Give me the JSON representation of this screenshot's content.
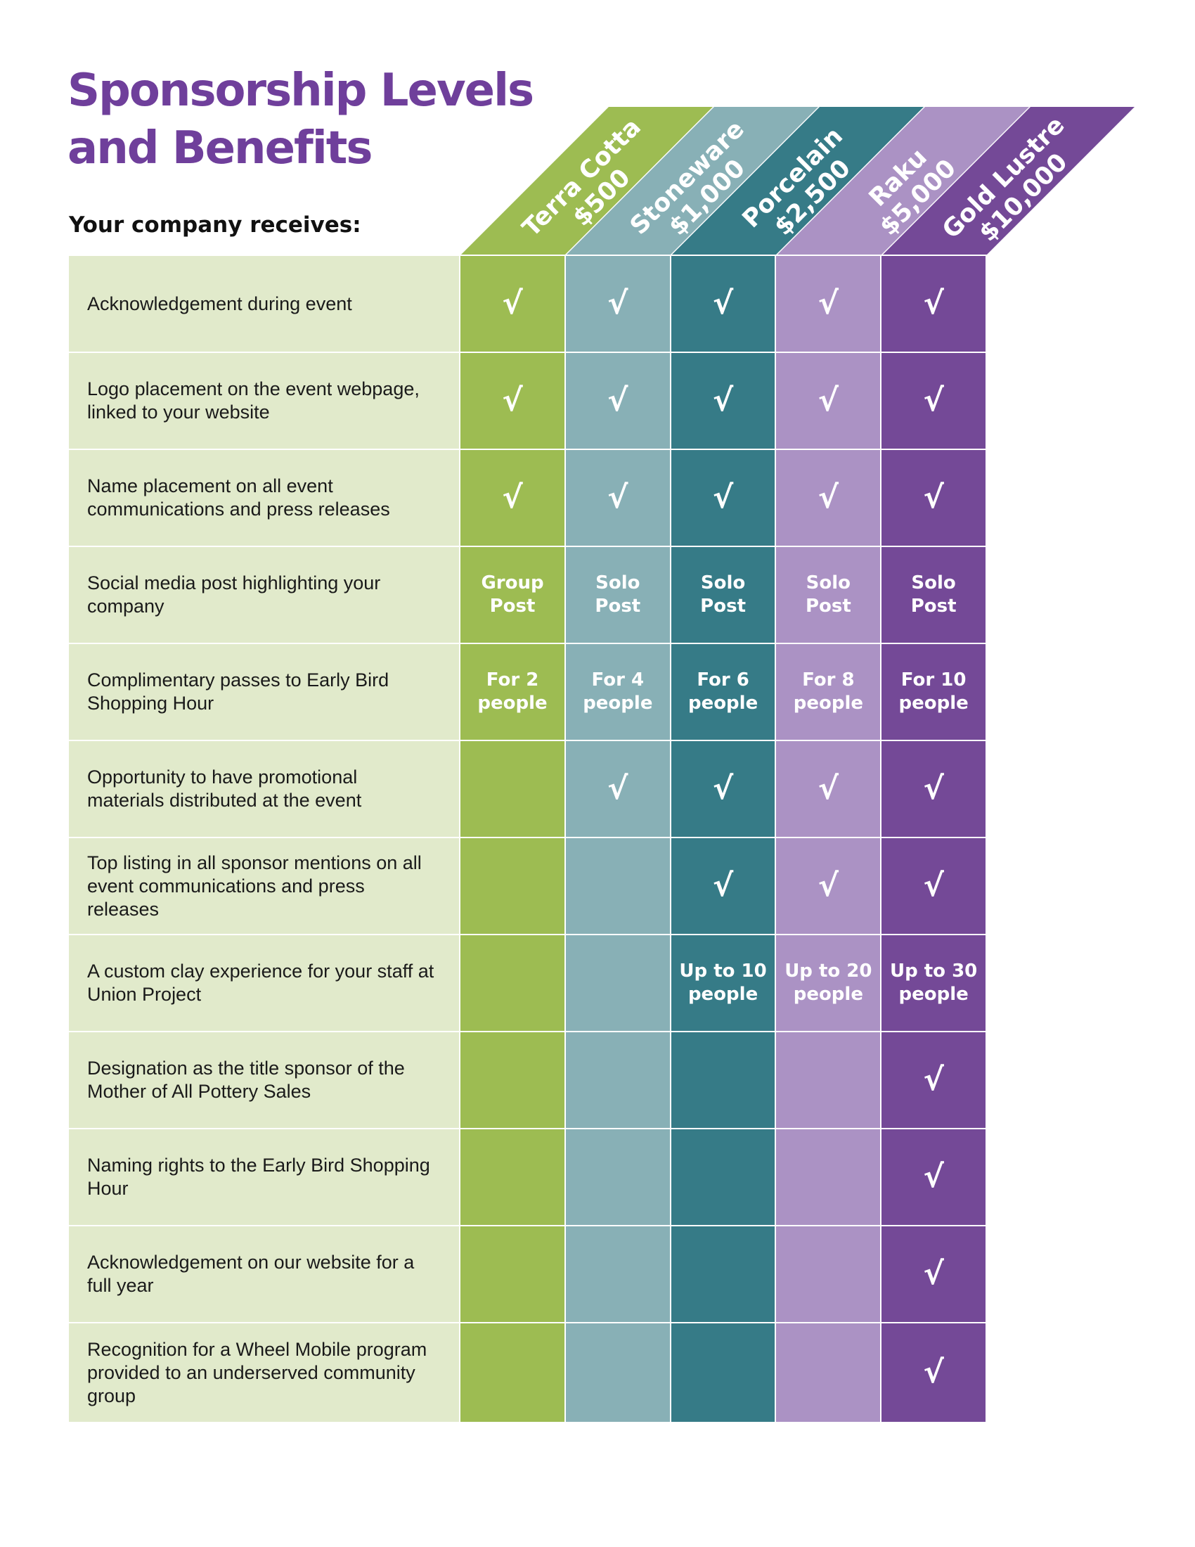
{
  "title_lines": [
    "Sponsorship Levels",
    "and Benefits"
  ],
  "subtitle": "Your company receives:",
  "colors": {
    "title": "#6f3f9b",
    "benefit_background": "#e1eacb",
    "tiers": [
      "#9dbc52",
      "#88b0b6",
      "#367b87",
      "#ab92c4",
      "#744997"
    ]
  },
  "check_mark": "√",
  "tiers": [
    {
      "name": "Terra Cotta",
      "price": "$500"
    },
    {
      "name": "Stoneware",
      "price": "$1,000"
    },
    {
      "name": "Porcelain",
      "price": "$2,500"
    },
    {
      "name": "Raku",
      "price": "$5,000"
    },
    {
      "name": "Gold Lustre",
      "price": "$10,000"
    }
  ],
  "benefits": [
    {
      "text": "Acknowledgement during event",
      "cells": [
        {
          "type": "check"
        },
        {
          "type": "check"
        },
        {
          "type": "check"
        },
        {
          "type": "check"
        },
        {
          "type": "check"
        }
      ]
    },
    {
      "text": "Logo placement on the event webpage, linked to your website",
      "cells": [
        {
          "type": "check"
        },
        {
          "type": "check"
        },
        {
          "type": "check"
        },
        {
          "type": "check"
        },
        {
          "type": "check"
        }
      ]
    },
    {
      "text": "Name placement on all event communications and press releases",
      "cells": [
        {
          "type": "check"
        },
        {
          "type": "check"
        },
        {
          "type": "check"
        },
        {
          "type": "check"
        },
        {
          "type": "check"
        }
      ]
    },
    {
      "text": "Social media post highlighting your company",
      "cells": [
        {
          "type": "text",
          "lines": [
            "Group",
            "Post"
          ]
        },
        {
          "type": "text",
          "lines": [
            "Solo",
            "Post"
          ]
        },
        {
          "type": "text",
          "lines": [
            "Solo",
            "Post"
          ]
        },
        {
          "type": "text",
          "lines": [
            "Solo",
            "Post"
          ]
        },
        {
          "type": "text",
          "lines": [
            "Solo",
            "Post"
          ]
        }
      ]
    },
    {
      "text": "Complimentary passes to Early Bird Shopping Hour",
      "cells": [
        {
          "type": "text",
          "lines": [
            "For 2",
            "people"
          ]
        },
        {
          "type": "text",
          "lines": [
            "For 4",
            "people"
          ]
        },
        {
          "type": "text",
          "lines": [
            "For 6",
            "people"
          ]
        },
        {
          "type": "text",
          "lines": [
            "For 8",
            "people"
          ]
        },
        {
          "type": "text",
          "lines": [
            "For 10",
            "people"
          ]
        }
      ]
    },
    {
      "text": "Opportunity to have promotional materials distributed at the event",
      "cells": [
        {
          "type": "empty"
        },
        {
          "type": "check"
        },
        {
          "type": "check"
        },
        {
          "type": "check"
        },
        {
          "type": "check"
        }
      ]
    },
    {
      "text": "Top listing in all sponsor mentions on all event communications and press releases",
      "cells": [
        {
          "type": "empty"
        },
        {
          "type": "empty"
        },
        {
          "type": "check"
        },
        {
          "type": "check"
        },
        {
          "type": "check"
        }
      ]
    },
    {
      "text": "A custom clay experience for your staff at Union Project",
      "cells": [
        {
          "type": "empty"
        },
        {
          "type": "empty"
        },
        {
          "type": "text",
          "lines": [
            "Up to 10",
            "people"
          ]
        },
        {
          "type": "text",
          "lines": [
            "Up to 20",
            "people"
          ]
        },
        {
          "type": "text",
          "lines": [
            "Up to 30",
            "people"
          ]
        }
      ]
    },
    {
      "text": "Designation as the title sponsor of the Mother of All Pottery Sales",
      "cells": [
        {
          "type": "empty"
        },
        {
          "type": "empty"
        },
        {
          "type": "empty"
        },
        {
          "type": "empty"
        },
        {
          "type": "check"
        }
      ]
    },
    {
      "text": "Naming rights to the Early Bird Shopping Hour",
      "cells": [
        {
          "type": "empty"
        },
        {
          "type": "empty"
        },
        {
          "type": "empty"
        },
        {
          "type": "empty"
        },
        {
          "type": "check"
        }
      ]
    },
    {
      "text": "Acknowledgement on our website for a full year",
      "cells": [
        {
          "type": "empty"
        },
        {
          "type": "empty"
        },
        {
          "type": "empty"
        },
        {
          "type": "empty"
        },
        {
          "type": "check"
        }
      ]
    },
    {
      "text": "Recognition for a Wheel Mobile program provided to an underserved community group",
      "cells": [
        {
          "type": "empty"
        },
        {
          "type": "empty"
        },
        {
          "type": "empty"
        },
        {
          "type": "empty"
        },
        {
          "type": "check"
        }
      ]
    }
  ]
}
